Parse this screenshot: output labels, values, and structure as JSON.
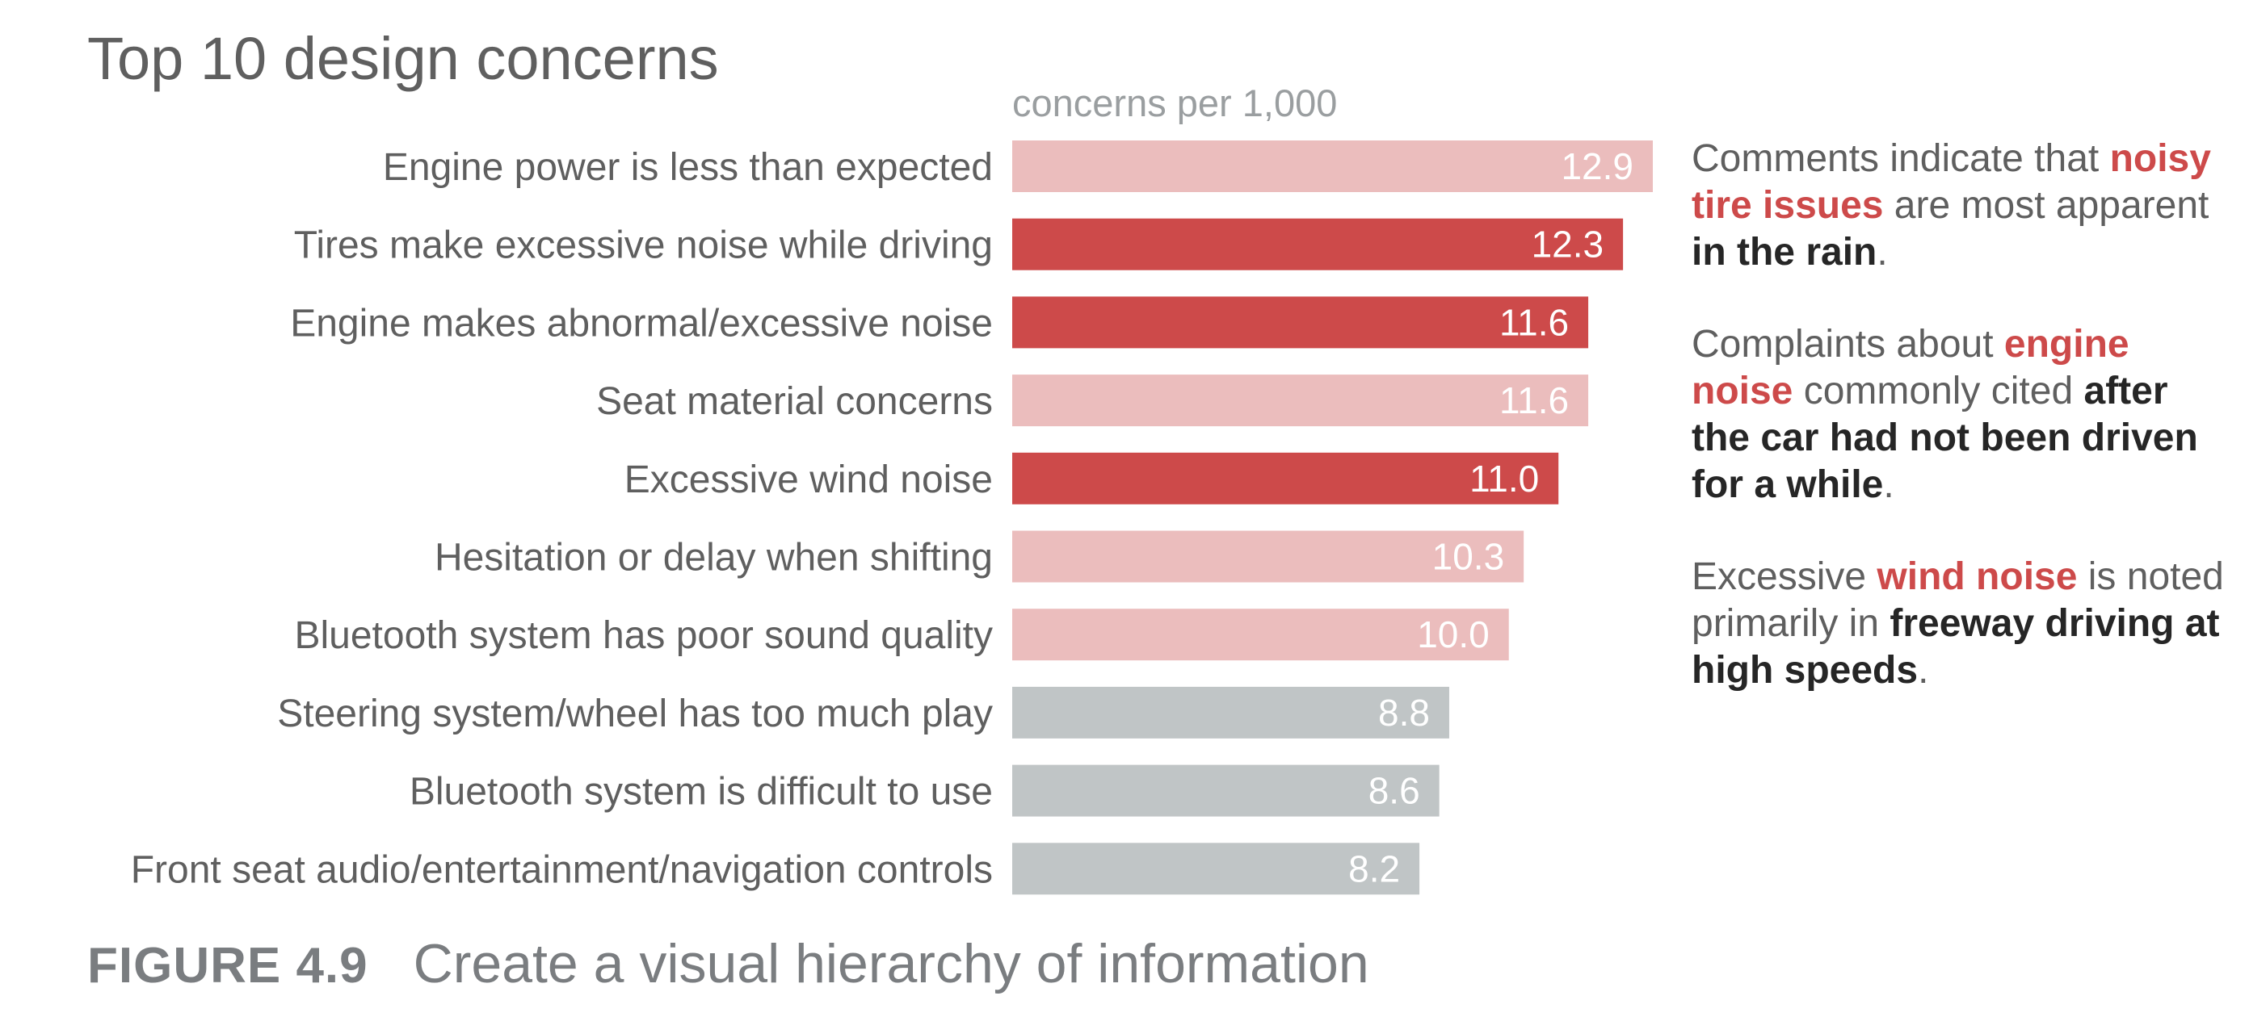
{
  "page": {
    "title": "Top 10 design concerns",
    "subtitle": "concerns per 1,000",
    "caption_number": "FIGURE 4.9",
    "caption_text": "Create a visual hierarchy of information"
  },
  "colors": {
    "highlight": "#cd4a4a",
    "light_red": "#ebbdbd",
    "gray_bar": "#c0c5c6",
    "text": "#5f5f5f",
    "emphasis_text": "#262626"
  },
  "notes": [
    {
      "parts": [
        {
          "text": "Comments indicate that ",
          "style": "plain"
        },
        {
          "text": "noisy tire issues",
          "style": "hl"
        },
        {
          "text": " are most apparent ",
          "style": "plain"
        },
        {
          "text": "in the rain",
          "style": "em"
        },
        {
          "text": ".",
          "style": "plain"
        }
      ]
    },
    {
      "parts": [
        {
          "text": "Complaints about ",
          "style": "plain"
        },
        {
          "text": "engine noise",
          "style": "hl"
        },
        {
          "text": " commonly cited ",
          "style": "plain"
        },
        {
          "text": "after the car had not been driven for a while",
          "style": "em"
        },
        {
          "text": ".",
          "style": "plain"
        }
      ]
    },
    {
      "parts": [
        {
          "text": "Excessive ",
          "style": "plain"
        },
        {
          "text": "wind noise",
          "style": "hl"
        },
        {
          "text": " is noted primarily in ",
          "style": "plain"
        },
        {
          "text": "freeway driving at high speeds",
          "style": "em"
        },
        {
          "text": ".",
          "style": "plain"
        }
      ]
    }
  ],
  "chart_data": {
    "type": "bar",
    "orientation": "horizontal",
    "title": "Top 10 design concerns",
    "subtitle": "concerns per 1,000",
    "xlim": [
      0,
      12.9
    ],
    "grid": false,
    "legend": "none",
    "categories": [
      "Engine power is less than expected",
      "Tires make excessive noise while driving",
      "Engine makes abnormal/excessive noise",
      "Seat material concerns",
      "Excessive wind noise",
      "Hesitation or delay when shifting",
      "Bluetooth system has poor sound quality",
      "Steering system/wheel has too much play",
      "Bluetooth system is difficult to use",
      "Front seat audio/entertainment/navigation controls"
    ],
    "values": [
      12.9,
      12.3,
      11.6,
      11.6,
      11.0,
      10.3,
      10.0,
      8.8,
      8.6,
      8.2
    ],
    "value_labels": [
      "12.9",
      "12.3",
      "11.6",
      "11.6",
      "11.0",
      "10.3",
      "10.0",
      "8.8",
      "8.6",
      "8.2"
    ],
    "bar_colors": [
      "#ebbdbd",
      "#cd4a4a",
      "#cd4a4a",
      "#ebbdbd",
      "#cd4a4a",
      "#ebbdbd",
      "#ebbdbd",
      "#c0c5c6",
      "#c0c5c6",
      "#c0c5c6"
    ]
  }
}
